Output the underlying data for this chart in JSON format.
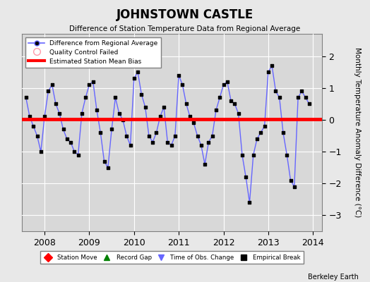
{
  "title": "JOHNSTOWN CASTLE",
  "subtitle": "Difference of Station Temperature Data from Regional Average",
  "ylabel": "Monthly Temperature Anomaly Difference (°C)",
  "bias": 0.03,
  "xlim": [
    2007.5,
    2014.2
  ],
  "ylim": [
    -3.5,
    2.7
  ],
  "yticks": [
    -3,
    -2,
    -1,
    0,
    1,
    2
  ],
  "bg_color": "#e8e8e8",
  "plot_bg_color": "#d8d8d8",
  "line_color": "#6666ff",
  "marker_color": "#000000",
  "bias_color": "#ff0000",
  "footer": "Berkeley Earth",
  "months": [
    2007.583,
    2007.667,
    2007.75,
    2007.833,
    2007.917,
    2008.0,
    2008.083,
    2008.167,
    2008.25,
    2008.333,
    2008.417,
    2008.5,
    2008.583,
    2008.667,
    2008.75,
    2008.833,
    2008.917,
    2009.0,
    2009.083,
    2009.167,
    2009.25,
    2009.333,
    2009.417,
    2009.5,
    2009.583,
    2009.667,
    2009.75,
    2009.833,
    2009.917,
    2010.0,
    2010.083,
    2010.167,
    2010.25,
    2010.333,
    2010.417,
    2010.5,
    2010.583,
    2010.667,
    2010.75,
    2010.833,
    2010.917,
    2011.0,
    2011.083,
    2011.167,
    2011.25,
    2011.333,
    2011.417,
    2011.5,
    2011.583,
    2011.667,
    2011.75,
    2011.833,
    2011.917,
    2012.0,
    2012.083,
    2012.167,
    2012.25,
    2012.333,
    2012.417,
    2012.5,
    2012.583,
    2012.667,
    2012.75,
    2012.833,
    2012.917,
    2013.0,
    2013.083,
    2013.167,
    2013.25,
    2013.333,
    2013.417,
    2013.5,
    2013.583,
    2013.667,
    2013.75,
    2013.833,
    2013.917
  ],
  "values": [
    0.7,
    0.1,
    -0.2,
    -0.5,
    -1.0,
    0.1,
    0.9,
    1.1,
    0.5,
    0.2,
    -0.3,
    -0.6,
    -0.7,
    -1.0,
    -1.1,
    0.2,
    0.7,
    1.1,
    1.2,
    0.3,
    -0.4,
    -1.3,
    -1.5,
    -0.3,
    0.7,
    0.2,
    0.0,
    -0.5,
    -0.8,
    1.3,
    1.5,
    0.8,
    0.4,
    -0.5,
    -0.7,
    -0.4,
    0.1,
    0.4,
    -0.7,
    -0.8,
    -0.5,
    1.4,
    1.1,
    0.5,
    0.1,
    -0.1,
    -0.5,
    -0.8,
    -1.4,
    -0.7,
    -0.5,
    0.3,
    0.7,
    1.1,
    1.2,
    0.6,
    0.5,
    0.2,
    -1.1,
    -1.8,
    -2.6,
    -1.1,
    -0.6,
    -0.4,
    -0.2,
    1.5,
    1.7,
    0.9,
    0.7,
    -0.4,
    -1.1,
    -1.9,
    -2.1,
    0.7,
    0.9,
    0.7,
    0.5
  ]
}
